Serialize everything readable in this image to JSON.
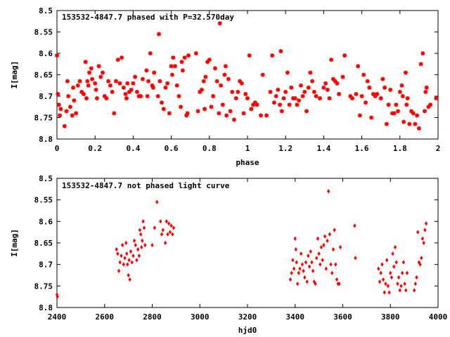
{
  "chart_data": [
    {
      "type": "scatter",
      "title": "153532-4847.7 phased with P=32.570day",
      "xlabel": "phase",
      "ylabel": "I[mag]",
      "xlim": [
        0,
        2
      ],
      "ylim": [
        8.5,
        8.8
      ],
      "y_inverted": true,
      "x_ticks": [
        "0",
        "0.2",
        "0.4",
        "0.6",
        "0.8",
        "1",
        "1.2",
        "1.4",
        "1.6",
        "1.8",
        "2"
      ],
      "y_ticks": [
        "8.5",
        "8.55",
        "8.6",
        "8.65",
        "8.7",
        "8.75",
        "8.8"
      ],
      "grid": false,
      "marker_color": "#ff0000",
      "marker": "asterisk",
      "points": [
        [
          0.0,
          8.605
        ],
        [
          0.005,
          8.695
        ],
        [
          0.01,
          8.72
        ],
        [
          0.015,
          8.745
        ],
        [
          0.02,
          8.73
        ],
        [
          0.04,
          8.77
        ],
        [
          0.05,
          8.735
        ],
        [
          0.055,
          8.665
        ],
        [
          0.06,
          8.7
        ],
        [
          0.07,
          8.725
        ],
        [
          0.08,
          8.745
        ],
        [
          0.085,
          8.68
        ],
        [
          0.09,
          8.71
        ],
        [
          0.1,
          8.74
        ],
        [
          0.11,
          8.675
        ],
        [
          0.12,
          8.665
        ],
        [
          0.13,
          8.69
        ],
        [
          0.14,
          8.695
        ],
        [
          0.15,
          8.62
        ],
        [
          0.155,
          8.705
        ],
        [
          0.16,
          8.665
        ],
        [
          0.165,
          8.675
        ],
        [
          0.17,
          8.645
        ],
        [
          0.18,
          8.635
        ],
        [
          0.185,
          8.66
        ],
        [
          0.2,
          8.67
        ],
        [
          0.205,
          8.685
        ],
        [
          0.21,
          8.705
        ],
        [
          0.22,
          8.63
        ],
        [
          0.23,
          8.655
        ],
        [
          0.24,
          8.645
        ],
        [
          0.25,
          8.7
        ],
        [
          0.26,
          8.705
        ],
        [
          0.27,
          8.665
        ],
        [
          0.28,
          8.675
        ],
        [
          0.29,
          8.69
        ],
        [
          0.3,
          8.74
        ],
        [
          0.31,
          8.665
        ],
        [
          0.32,
          8.615
        ],
        [
          0.33,
          8.67
        ],
        [
          0.34,
          8.61
        ],
        [
          0.35,
          8.68
        ],
        [
          0.36,
          8.695
        ],
        [
          0.365,
          8.705
        ],
        [
          0.37,
          8.67
        ],
        [
          0.38,
          8.69
        ],
        [
          0.39,
          8.685
        ],
        [
          0.4,
          8.67
        ],
        [
          0.41,
          8.655
        ],
        [
          0.42,
          8.69
        ],
        [
          0.43,
          8.7
        ],
        [
          0.44,
          8.7
        ],
        [
          0.45,
          8.66
        ],
        [
          0.47,
          8.64
        ],
        [
          0.475,
          8.7
        ],
        [
          0.48,
          8.665
        ],
        [
          0.49,
          8.6
        ],
        [
          0.5,
          8.675
        ],
        [
          0.505,
          8.68
        ],
        [
          0.51,
          8.645
        ],
        [
          0.53,
          8.7
        ],
        [
          0.535,
          8.555
        ],
        [
          0.54,
          8.665
        ],
        [
          0.55,
          8.715
        ],
        [
          0.56,
          8.73
        ],
        [
          0.57,
          8.68
        ],
        [
          0.58,
          8.67
        ],
        [
          0.59,
          8.74
        ],
        [
          0.6,
          8.63
        ],
        [
          0.605,
          8.65
        ],
        [
          0.61,
          8.61
        ],
        [
          0.62,
          8.63
        ],
        [
          0.63,
          8.675
        ],
        [
          0.64,
          8.7
        ],
        [
          0.65,
          8.725
        ],
        [
          0.655,
          8.62
        ],
        [
          0.66,
          8.64
        ],
        [
          0.67,
          8.61
        ],
        [
          0.68,
          8.745
        ],
        [
          0.685,
          8.74
        ],
        [
          0.69,
          8.605
        ],
        [
          0.73,
          8.6
        ],
        [
          0.74,
          8.735
        ],
        [
          0.75,
          8.69
        ],
        [
          0.76,
          8.685
        ],
        [
          0.77,
          8.665
        ],
        [
          0.775,
          8.73
        ],
        [
          0.78,
          8.655
        ],
        [
          0.79,
          8.62
        ],
        [
          0.8,
          8.615
        ],
        [
          0.81,
          8.725
        ],
        [
          0.82,
          8.7
        ],
        [
          0.83,
          8.635
        ],
        [
          0.84,
          8.665
        ],
        [
          0.85,
          8.74
        ],
        [
          0.855,
          8.53
        ],
        [
          0.86,
          8.675
        ],
        [
          0.87,
          8.72
        ],
        [
          0.88,
          8.65
        ],
        [
          0.885,
          8.63
        ],
        [
          0.89,
          8.745
        ],
        [
          0.9,
          8.66
        ],
        [
          0.91,
          8.735
        ],
        [
          0.92,
          8.69
        ],
        [
          0.93,
          8.755
        ],
        [
          0.94,
          8.705
        ],
        [
          0.95,
          8.69
        ],
        [
          0.96,
          8.665
        ],
        [
          0.97,
          8.67
        ],
        [
          0.98,
          8.74
        ],
        [
          0.99,
          8.695
        ],
        [
          1.0,
          8.705
        ],
        [
          1.01,
          8.605
        ],
        [
          1.02,
          8.73
        ],
        [
          1.03,
          8.72
        ],
        [
          1.04,
          8.715
        ],
        [
          1.05,
          8.72
        ],
        [
          1.07,
          8.745
        ],
        [
          1.08,
          8.65
        ],
        [
          1.1,
          8.745
        ],
        [
          1.12,
          8.69
        ],
        [
          1.13,
          8.605
        ],
        [
          1.14,
          8.715
        ],
        [
          1.15,
          8.7
        ],
        [
          1.16,
          8.685
        ],
        [
          1.17,
          8.72
        ],
        [
          1.175,
          8.595
        ],
        [
          1.18,
          8.735
        ],
        [
          1.19,
          8.705
        ],
        [
          1.2,
          8.69
        ],
        [
          1.21,
          8.645
        ],
        [
          1.22,
          8.72
        ],
        [
          1.23,
          8.68
        ],
        [
          1.24,
          8.705
        ],
        [
          1.25,
          8.705
        ],
        [
          1.26,
          8.72
        ],
        [
          1.27,
          8.71
        ],
        [
          1.28,
          8.675
        ],
        [
          1.29,
          8.7
        ],
        [
          1.3,
          8.69
        ],
        [
          1.31,
          8.735
        ],
        [
          1.32,
          8.68
        ],
        [
          1.33,
          8.645
        ],
        [
          1.34,
          8.665
        ],
        [
          1.35,
          8.69
        ],
        [
          1.36,
          8.7
        ],
        [
          1.38,
          8.705
        ],
        [
          1.4,
          8.68
        ],
        [
          1.41,
          8.67
        ],
        [
          1.42,
          8.685
        ],
        [
          1.43,
          8.705
        ],
        [
          1.44,
          8.615
        ],
        [
          1.45,
          8.66
        ],
        [
          1.46,
          8.665
        ],
        [
          1.47,
          8.67
        ],
        [
          1.48,
          8.695
        ],
        [
          1.5,
          8.655
        ],
        [
          1.51,
          8.605
        ],
        [
          1.54,
          8.7
        ],
        [
          1.55,
          8.705
        ],
        [
          1.57,
          8.695
        ],
        [
          1.58,
          8.63
        ],
        [
          1.59,
          8.745
        ],
        [
          1.6,
          8.7
        ],
        [
          1.61,
          8.65
        ],
        [
          1.62,
          8.715
        ],
        [
          1.63,
          8.665
        ],
        [
          1.64,
          8.68
        ],
        [
          1.65,
          8.75
        ],
        [
          1.66,
          8.695
        ],
        [
          1.67,
          8.7
        ],
        [
          1.68,
          8.695
        ],
        [
          1.7,
          8.705
        ],
        [
          1.71,
          8.66
        ],
        [
          1.72,
          8.68
        ],
        [
          1.73,
          8.765
        ],
        [
          1.74,
          8.72
        ],
        [
          1.75,
          8.685
        ],
        [
          1.76,
          8.74
        ],
        [
          1.77,
          8.74
        ],
        [
          1.78,
          8.72
        ],
        [
          1.79,
          8.735
        ],
        [
          1.8,
          8.69
        ],
        [
          1.81,
          8.675
        ],
        [
          1.815,
          8.7
        ],
        [
          1.82,
          8.76
        ],
        [
          1.83,
          8.645
        ],
        [
          1.835,
          8.72
        ],
        [
          1.84,
          8.705
        ],
        [
          1.85,
          8.765
        ],
        [
          1.86,
          8.735
        ],
        [
          1.87,
          8.74
        ],
        [
          1.88,
          8.765
        ],
        [
          1.89,
          8.745
        ],
        [
          1.9,
          8.775
        ],
        [
          1.91,
          8.625
        ],
        [
          1.92,
          8.6
        ],
        [
          1.93,
          8.735
        ],
        [
          1.935,
          8.69
        ],
        [
          1.94,
          8.68
        ],
        [
          1.95,
          8.725
        ],
        [
          1.96,
          8.72
        ],
        [
          1.99,
          8.705
        ]
      ]
    },
    {
      "type": "scatter",
      "title": "153532-4847.7 not phased light curve",
      "xlabel": "hjd0",
      "ylabel": "I[mag]",
      "xlim": [
        2400,
        4000
      ],
      "ylim": [
        8.5,
        8.8
      ],
      "y_inverted": true,
      "x_ticks": [
        "2400",
        "2600",
        "2800",
        "3000",
        "3200",
        "3400",
        "3600",
        "3800",
        "4000"
      ],
      "y_ticks": [
        "8.5",
        "8.55",
        "8.6",
        "8.65",
        "8.7",
        "8.75",
        "8.8"
      ],
      "grid": false,
      "marker_color": "#ff0000",
      "marker": "diamond",
      "points": [
        [
          2400,
          8.77
        ],
        [
          2402,
          8.775
        ],
        [
          2650,
          8.665
        ],
        [
          2655,
          8.675
        ],
        [
          2660,
          8.715
        ],
        [
          2665,
          8.695
        ],
        [
          2670,
          8.68
        ],
        [
          2675,
          8.655
        ],
        [
          2680,
          8.7
        ],
        [
          2685,
          8.685
        ],
        [
          2690,
          8.65
        ],
        [
          2693,
          8.675
        ],
        [
          2696,
          8.7
        ],
        [
          2700,
          8.725
        ],
        [
          2703,
          8.69
        ],
        [
          2706,
          8.735
        ],
        [
          2710,
          8.67
        ],
        [
          2715,
          8.695
        ],
        [
          2720,
          8.68
        ],
        [
          2725,
          8.645
        ],
        [
          2730,
          8.655
        ],
        [
          2735,
          8.69
        ],
        [
          2740,
          8.665
        ],
        [
          2745,
          8.68
        ],
        [
          2748,
          8.62
        ],
        [
          2752,
          8.63
        ],
        [
          2755,
          8.66
        ],
        [
          2758,
          8.645
        ],
        [
          2762,
          8.6
        ],
        [
          2766,
          8.615
        ],
        [
          2770,
          8.655
        ],
        [
          2800,
          8.655
        ],
        [
          2810,
          8.615
        ],
        [
          2820,
          8.555
        ],
        [
          2835,
          8.6
        ],
        [
          2840,
          8.63
        ],
        [
          2845,
          8.62
        ],
        [
          2855,
          8.65
        ],
        [
          2860,
          8.6
        ],
        [
          2865,
          8.63
        ],
        [
          2870,
          8.605
        ],
        [
          2875,
          8.625
        ],
        [
          2880,
          8.61
        ],
        [
          2885,
          8.63
        ],
        [
          2890,
          8.615
        ],
        [
          3380,
          8.735
        ],
        [
          3385,
          8.72
        ],
        [
          3390,
          8.69
        ],
        [
          3395,
          8.71
        ],
        [
          3400,
          8.64
        ],
        [
          3403,
          8.665
        ],
        [
          3406,
          8.695
        ],
        [
          3410,
          8.745
        ],
        [
          3415,
          8.72
        ],
        [
          3420,
          8.71
        ],
        [
          3425,
          8.675
        ],
        [
          3430,
          8.7
        ],
        [
          3435,
          8.715
        ],
        [
          3440,
          8.73
        ],
        [
          3445,
          8.695
        ],
        [
          3450,
          8.74
        ],
        [
          3455,
          8.68
        ],
        [
          3460,
          8.705
        ],
        [
          3465,
          8.67
        ],
        [
          3470,
          8.695
        ],
        [
          3475,
          8.715
        ],
        [
          3480,
          8.74
        ],
        [
          3485,
          8.745
        ],
        [
          3490,
          8.685
        ],
        [
          3495,
          8.64
        ],
        [
          3500,
          8.675
        ],
        [
          3505,
          8.7
        ],
        [
          3510,
          8.66
        ],
        [
          3515,
          8.69
        ],
        [
          3520,
          8.655
        ],
        [
          3525,
          8.635
        ],
        [
          3530,
          8.71
        ],
        [
          3535,
          8.645
        ],
        [
          3540,
          8.53
        ],
        [
          3545,
          8.63
        ],
        [
          3550,
          8.7
        ],
        [
          3555,
          8.72
        ],
        [
          3560,
          8.665
        ],
        [
          3565,
          8.62
        ],
        [
          3570,
          8.7
        ],
        [
          3575,
          8.735
        ],
        [
          3580,
          8.745
        ],
        [
          3585,
          8.745
        ],
        [
          3590,
          8.66
        ],
        [
          3650,
          8.61
        ],
        [
          3653,
          8.685
        ],
        [
          3750,
          8.71
        ],
        [
          3755,
          8.74
        ],
        [
          3760,
          8.72
        ],
        [
          3765,
          8.7
        ],
        [
          3770,
          8.735
        ],
        [
          3775,
          8.765
        ],
        [
          3780,
          8.745
        ],
        [
          3785,
          8.69
        ],
        [
          3790,
          8.75
        ],
        [
          3795,
          8.765
        ],
        [
          3800,
          8.72
        ],
        [
          3805,
          8.73
        ],
        [
          3810,
          8.675
        ],
        [
          3815,
          8.705
        ],
        [
          3820,
          8.66
        ],
        [
          3825,
          8.695
        ],
        [
          3830,
          8.745
        ],
        [
          3835,
          8.73
        ],
        [
          3840,
          8.76
        ],
        [
          3845,
          8.75
        ],
        [
          3850,
          8.72
        ],
        [
          3855,
          8.695
        ],
        [
          3860,
          8.745
        ],
        [
          3865,
          8.76
        ],
        [
          3870,
          8.72
        ],
        [
          3900,
          8.76
        ],
        [
          3905,
          8.745
        ],
        [
          3910,
          8.73
        ],
        [
          3915,
          8.625
        ],
        [
          3920,
          8.695
        ],
        [
          3925,
          8.7
        ],
        [
          3930,
          8.685
        ],
        [
          3935,
          8.64
        ],
        [
          3940,
          8.65
        ],
        [
          3945,
          8.62
        ],
        [
          3950,
          8.605
        ]
      ]
    }
  ]
}
